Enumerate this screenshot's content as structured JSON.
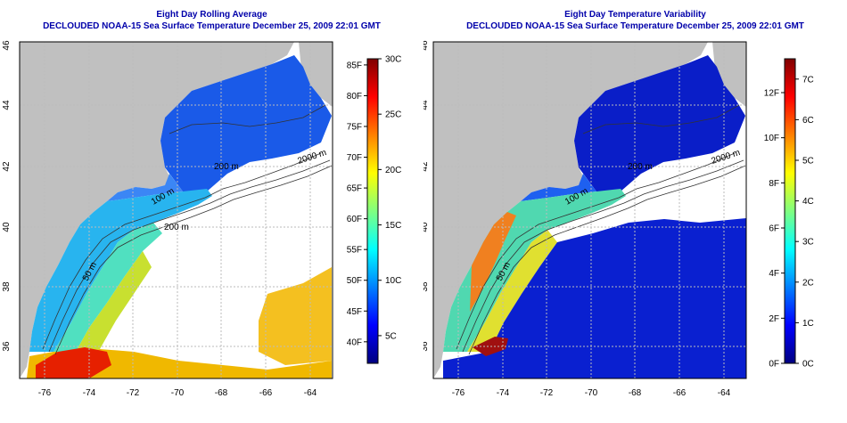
{
  "panels": [
    {
      "title_line1": "Eight Day Rolling Average",
      "title_line2": "DECLOUDED NOAA-15 Sea Surface Temperature December 25, 2009 22:01 GMT",
      "contour_labels": [
        "2000 m",
        "200 m",
        "200 m",
        "100 m",
        "50 m"
      ],
      "colorbar": {
        "gradient": [
          "#000080",
          "#0000ff",
          "#0080ff",
          "#00ffff",
          "#80ff80",
          "#ffff00",
          "#ff8000",
          "#ff0000",
          "#800000"
        ],
        "fahrenheit_ticks": [
          {
            "label": "40F",
            "value": 40
          },
          {
            "label": "45F",
            "value": 45
          },
          {
            "label": "50F",
            "value": 50
          },
          {
            "label": "55F",
            "value": 55
          },
          {
            "label": "60F",
            "value": 60
          },
          {
            "label": "65F",
            "value": 65
          },
          {
            "label": "70F",
            "value": 70
          },
          {
            "label": "75F",
            "value": 75
          },
          {
            "label": "80F",
            "value": 80
          },
          {
            "label": "85F",
            "value": 85
          }
        ],
        "celsius_ticks": [
          {
            "label": "5C",
            "value": 5
          },
          {
            "label": "10C",
            "value": 10
          },
          {
            "label": "15C",
            "value": 15
          },
          {
            "label": "20C",
            "value": 20
          },
          {
            "label": "25C",
            "value": 25
          },
          {
            "label": "30C",
            "value": 30
          }
        ],
        "range_celsius": [
          2.5,
          30
        ]
      }
    },
    {
      "title_line1": "Eight Day Temperature Variability",
      "title_line2": "DECLOUDED NOAA-15 Sea Surface Temperature December 25, 2009 22:01 GMT",
      "contour_labels": [
        "2000 m",
        "200 m",
        "100 m",
        "50 m"
      ],
      "colorbar": {
        "gradient": [
          "#000080",
          "#0000ff",
          "#0080ff",
          "#00ffff",
          "#80ff80",
          "#ffff00",
          "#ff8000",
          "#ff0000",
          "#800000"
        ],
        "fahrenheit_ticks": [
          {
            "label": "0F",
            "value": 0
          },
          {
            "label": "2F",
            "value": 2
          },
          {
            "label": "4F",
            "value": 4
          },
          {
            "label": "6F",
            "value": 6
          },
          {
            "label": "8F",
            "value": 8
          },
          {
            "label": "10F",
            "value": 10
          },
          {
            "label": "12F",
            "value": 12
          }
        ],
        "celsius_ticks": [
          {
            "label": "0C",
            "value": 0
          },
          {
            "label": "1C",
            "value": 1
          },
          {
            "label": "2C",
            "value": 2
          },
          {
            "label": "3C",
            "value": 3
          },
          {
            "label": "4C",
            "value": 4
          },
          {
            "label": "5C",
            "value": 5
          },
          {
            "label": "6C",
            "value": 6
          },
          {
            "label": "7C",
            "value": 7
          }
        ],
        "range_celsius": [
          0,
          7.5
        ]
      }
    }
  ],
  "lon_ticks": [
    "-76",
    "-74",
    "-72",
    "-70",
    "-68",
    "-66",
    "-64"
  ],
  "lat_ticks": [
    "36",
    "38",
    "40",
    "42",
    "44",
    "46"
  ],
  "colors": {
    "land": "#c0c0c0",
    "title": "#0000aa",
    "grid": "#bbbbbb"
  }
}
